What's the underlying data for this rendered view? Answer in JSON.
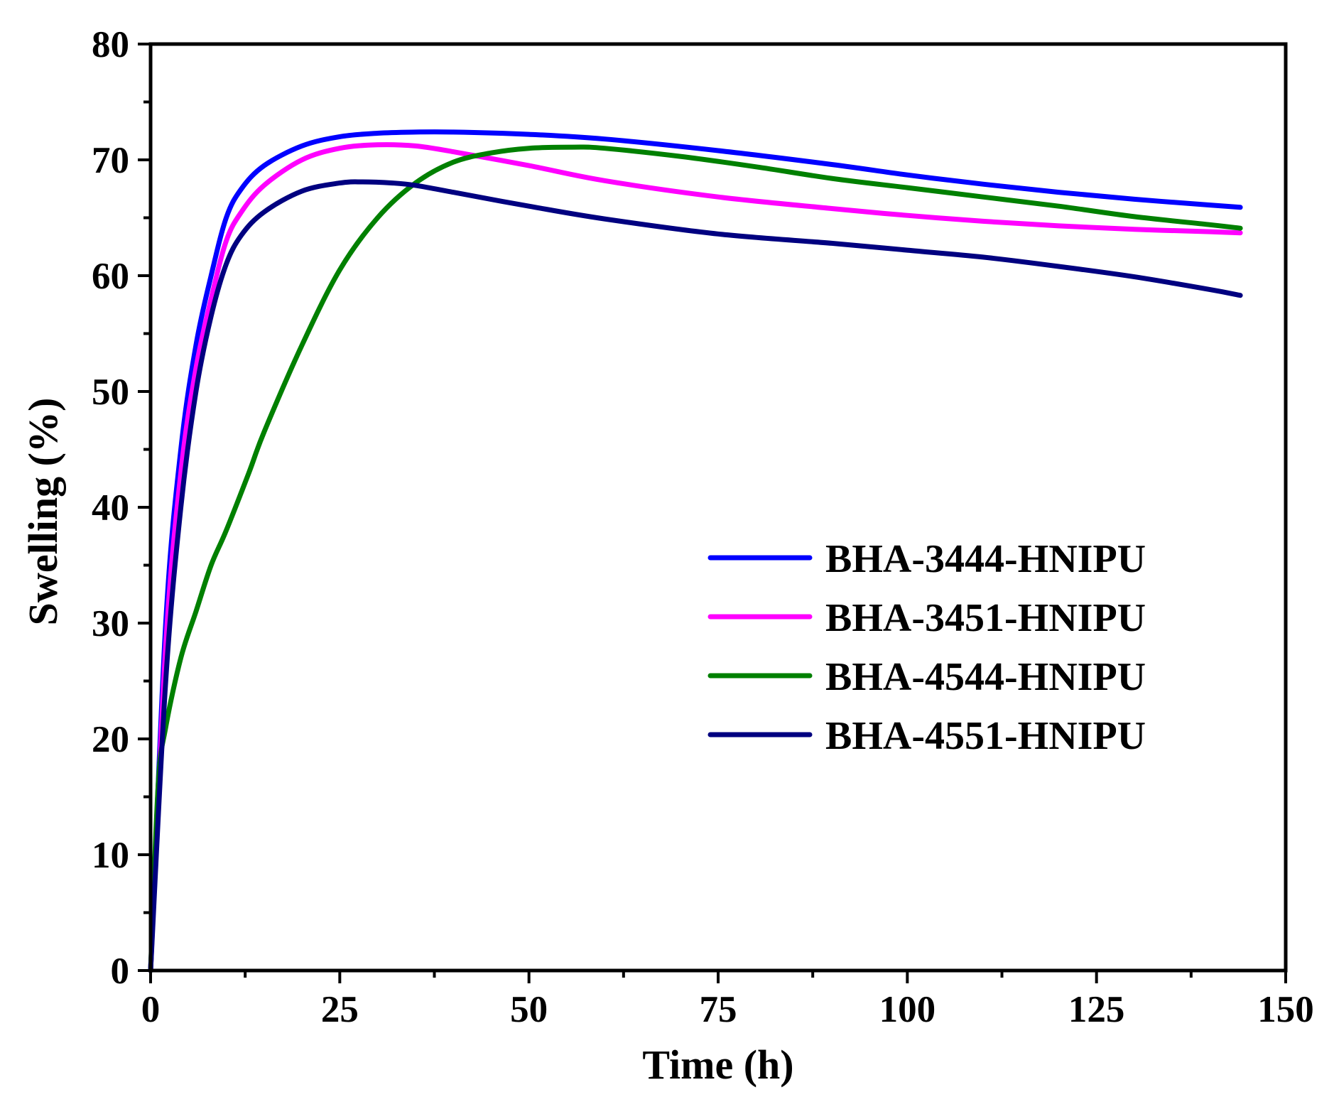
{
  "chart_data": {
    "type": "line",
    "title": "",
    "xlabel": "Time (h)",
    "ylabel": "Swelling (%)",
    "xlim": [
      0,
      150
    ],
    "ylim": [
      0,
      80
    ],
    "xticks": [
      0,
      25,
      50,
      75,
      100,
      125,
      150
    ],
    "yticks": [
      0,
      10,
      20,
      30,
      40,
      50,
      60,
      70,
      80
    ],
    "xtick_labels": [
      "0",
      "25",
      "50",
      "75",
      "100",
      "125",
      "150"
    ],
    "ytick_labels": [
      "0",
      "10",
      "20",
      "30",
      "40",
      "50",
      "60",
      "70",
      "80"
    ],
    "grid": false,
    "legend_position": "center-right",
    "series": [
      {
        "name": "BHA-3444-HNIPU",
        "color": "#0000ff",
        "x": [
          0,
          2,
          4,
          6,
          8,
          10,
          12,
          15,
          20,
          25,
          30,
          35,
          40,
          50,
          60,
          75,
          90,
          100,
          110,
          120,
          130,
          140,
          144
        ],
        "y": [
          0,
          30,
          45,
          54,
          60,
          65,
          67.5,
          69.5,
          71.2,
          72.0,
          72.3,
          72.4,
          72.4,
          72.2,
          71.8,
          70.8,
          69.6,
          68.7,
          67.9,
          67.2,
          66.6,
          66.1,
          65.9
        ]
      },
      {
        "name": "BHA-3451-HNIPU",
        "color": "#ff00ff",
        "x": [
          0,
          2,
          4,
          6,
          8,
          10,
          12,
          15,
          20,
          25,
          30,
          35,
          40,
          50,
          60,
          75,
          90,
          100,
          110,
          120,
          130,
          140,
          144
        ],
        "y": [
          0,
          28,
          43,
          52,
          58,
          63,
          65.5,
          67.8,
          70.0,
          71.0,
          71.3,
          71.2,
          70.7,
          69.5,
          68.2,
          66.8,
          65.8,
          65.2,
          64.7,
          64.3,
          64.0,
          63.8,
          63.7
        ]
      },
      {
        "name": "BHA-4544-HNIPU",
        "color": "#008000",
        "x": [
          0,
          1,
          2,
          4,
          6,
          8,
          10,
          13,
          15,
          20,
          25,
          30,
          35,
          40,
          45,
          50,
          56,
          60,
          70,
          80,
          90,
          100,
          110,
          120,
          130,
          140,
          144
        ],
        "y": [
          0,
          16,
          21,
          27,
          31,
          35,
          38,
          43,
          46.5,
          54,
          60.5,
          65,
          68,
          69.8,
          70.6,
          71.0,
          71.1,
          71.0,
          70.3,
          69.4,
          68.4,
          67.6,
          66.8,
          66.0,
          65.1,
          64.4,
          64.1
        ]
      },
      {
        "name": "BHA-4551-HNIPU",
        "color": "#000080",
        "x": [
          0,
          2,
          4,
          6,
          8,
          10,
          12,
          15,
          20,
          25,
          28,
          32,
          35,
          40,
          50,
          60,
          75,
          90,
          100,
          110,
          120,
          130,
          140,
          144
        ],
        "y": [
          0,
          25,
          40,
          50,
          56.5,
          61,
          63.5,
          65.5,
          67.3,
          68.0,
          68.1,
          68.0,
          67.8,
          67.2,
          66.0,
          64.9,
          63.6,
          62.8,
          62.2,
          61.6,
          60.8,
          59.9,
          58.8,
          58.3
        ]
      }
    ]
  }
}
